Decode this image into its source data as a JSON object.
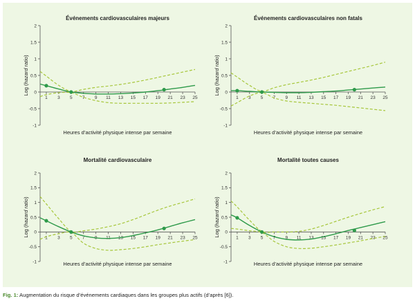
{
  "caption": {
    "label": "Fig. 1:",
    "text": " Augmentation du risque d’événements cardiaques dans les groupes plus actifs (d’après [6])."
  },
  "colors": {
    "panel_bg": "#eef7e4",
    "solid_line": "#2e9a4a",
    "ci_line": "#a6c63a",
    "point": "#2e9a4a",
    "axis": "#555555"
  },
  "chart_data": [
    {
      "type": "line",
      "title": "Événements cardiovasculaires majeurs",
      "xlabel": "Heures d’activité physique intense par semaine",
      "ylabel_prefix": "Log (",
      "ylabel_italic": "hazard ratio",
      "ylabel_suffix": ")",
      "xlim": [
        0,
        25
      ],
      "ylim": [
        -1,
        2
      ],
      "xticks": [
        1,
        3,
        5,
        7,
        9,
        11,
        13,
        15,
        17,
        19,
        21,
        23,
        25
      ],
      "yticks": [
        -1,
        -0.5,
        0,
        0.5,
        1,
        1.5,
        2
      ],
      "x": [
        0,
        1,
        3,
        5,
        7,
        9,
        11,
        13,
        15,
        17,
        19,
        21,
        23,
        25
      ],
      "series": [
        {
          "role": "estimate",
          "values": [
            0.24,
            0.19,
            0.09,
            0.0,
            -0.04,
            -0.06,
            -0.06,
            -0.05,
            -0.03,
            0.0,
            0.04,
            0.09,
            0.14,
            0.2
          ]
        },
        {
          "role": "ci-upper",
          "values": [
            0.62,
            0.48,
            0.2,
            0.02,
            0.08,
            0.14,
            0.18,
            0.23,
            0.29,
            0.36,
            0.44,
            0.52,
            0.6,
            0.68
          ]
        },
        {
          "role": "ci-lower",
          "values": [
            -0.14,
            -0.08,
            -0.02,
            -0.02,
            -0.16,
            -0.26,
            -0.32,
            -0.34,
            -0.34,
            -0.34,
            -0.34,
            -0.33,
            -0.31,
            -0.29
          ]
        }
      ],
      "points": [
        {
          "x": 1,
          "y": 0.19
        },
        {
          "x": 5,
          "y": 0.0
        },
        {
          "x": 20,
          "y": 0.07
        }
      ]
    },
    {
      "type": "line",
      "title": "Événements cardiovasculaires non fatals",
      "xlabel": "Heures d’activité physique intense par semaine",
      "ylabel_prefix": "Log (",
      "ylabel_italic": "hazard ratio",
      "ylabel_suffix": ")",
      "xlim": [
        0,
        25
      ],
      "ylim": [
        -1,
        2
      ],
      "xticks": [
        1,
        3,
        5,
        7,
        9,
        11,
        13,
        15,
        17,
        19,
        21,
        23,
        25
      ],
      "yticks": [
        -1,
        -0.5,
        0,
        0.5,
        1,
        1.5,
        2
      ],
      "x": [
        0,
        1,
        3,
        5,
        7,
        9,
        11,
        13,
        15,
        17,
        19,
        21,
        23,
        25
      ],
      "series": [
        {
          "role": "estimate",
          "values": [
            0.04,
            0.04,
            0.02,
            0.0,
            -0.01,
            -0.02,
            -0.02,
            -0.01,
            0.01,
            0.03,
            0.06,
            0.09,
            0.12,
            0.15
          ]
        },
        {
          "role": "ci-upper",
          "values": [
            0.58,
            0.45,
            0.2,
            0.02,
            0.13,
            0.22,
            0.29,
            0.36,
            0.44,
            0.53,
            0.62,
            0.71,
            0.8,
            0.9
          ]
        },
        {
          "role": "ci-lower",
          "values": [
            -0.42,
            -0.32,
            -0.12,
            -0.02,
            -0.18,
            -0.27,
            -0.31,
            -0.34,
            -0.37,
            -0.4,
            -0.44,
            -0.48,
            -0.52,
            -0.56
          ]
        }
      ],
      "points": [
        {
          "x": 1,
          "y": 0.04
        },
        {
          "x": 5,
          "y": 0.0
        },
        {
          "x": 20,
          "y": 0.07
        }
      ]
    },
    {
      "type": "line",
      "title": "Mortalité cardiovasculaire",
      "xlabel": "Heures d’activité physique intense par semaine",
      "ylabel_prefix": "Log (",
      "ylabel_italic": "hazard ratio",
      "ylabel_suffix": ")",
      "xlim": [
        0,
        25
      ],
      "ylim": [
        -1,
        2
      ],
      "xticks": [
        1,
        3,
        5,
        7,
        9,
        11,
        13,
        15,
        17,
        19,
        21,
        23,
        25
      ],
      "yticks": [
        -1,
        -0.5,
        0,
        0.5,
        1,
        1.5,
        2
      ],
      "x": [
        0,
        1,
        3,
        5,
        7,
        9,
        11,
        13,
        15,
        17,
        19,
        21,
        23,
        25
      ],
      "series": [
        {
          "role": "estimate",
          "values": [
            0.48,
            0.38,
            0.18,
            0.0,
            -0.13,
            -0.2,
            -0.22,
            -0.19,
            -0.12,
            -0.03,
            0.07,
            0.19,
            0.31,
            0.42
          ]
        },
        {
          "role": "ci-upper",
          "values": [
            1.2,
            0.95,
            0.45,
            0.02,
            0.04,
            0.1,
            0.18,
            0.28,
            0.42,
            0.58,
            0.74,
            0.88,
            1.0,
            1.12
          ]
        },
        {
          "role": "ci-lower",
          "values": [
            -0.25,
            -0.16,
            -0.06,
            -0.02,
            -0.38,
            -0.56,
            -0.62,
            -0.6,
            -0.56,
            -0.5,
            -0.43,
            -0.37,
            -0.31,
            -0.26
          ]
        }
      ],
      "points": [
        {
          "x": 1,
          "y": 0.38
        },
        {
          "x": 5,
          "y": 0.0
        },
        {
          "x": 20,
          "y": 0.12
        }
      ]
    },
    {
      "type": "line",
      "title": "Mortalité toutes causes",
      "xlabel": "Heures d’activité physique intense par semaine",
      "ylabel_prefix": "Log (",
      "ylabel_italic": "hazard ratio",
      "ylabel_suffix": ")",
      "xlim": [
        0,
        25
      ],
      "ylim": [
        -1,
        2
      ],
      "xticks": [
        1,
        3,
        5,
        7,
        9,
        11,
        13,
        15,
        17,
        19,
        21,
        23,
        25
      ],
      "yticks": [
        -1,
        -0.5,
        0,
        0.5,
        1,
        1.5,
        2
      ],
      "x": [
        0,
        1,
        3,
        5,
        7,
        9,
        11,
        13,
        15,
        17,
        19,
        21,
        23,
        25
      ],
      "series": [
        {
          "role": "estimate",
          "values": [
            0.58,
            0.48,
            0.22,
            0.0,
            -0.16,
            -0.25,
            -0.27,
            -0.24,
            -0.16,
            -0.06,
            0.05,
            0.15,
            0.25,
            0.35
          ]
        },
        {
          "role": "ci-upper",
          "values": [
            1.05,
            0.85,
            0.4,
            0.02,
            0.0,
            0.0,
            0.02,
            0.1,
            0.22,
            0.36,
            0.5,
            0.63,
            0.75,
            0.86
          ]
        },
        {
          "role": "ci-lower",
          "values": [
            0.12,
            0.1,
            0.04,
            -0.02,
            -0.32,
            -0.5,
            -0.56,
            -0.55,
            -0.5,
            -0.44,
            -0.37,
            -0.3,
            -0.22,
            -0.15
          ]
        }
      ],
      "points": [
        {
          "x": 1,
          "y": 0.48
        },
        {
          "x": 5,
          "y": 0.0
        },
        {
          "x": 20,
          "y": 0.05
        }
      ]
    }
  ]
}
